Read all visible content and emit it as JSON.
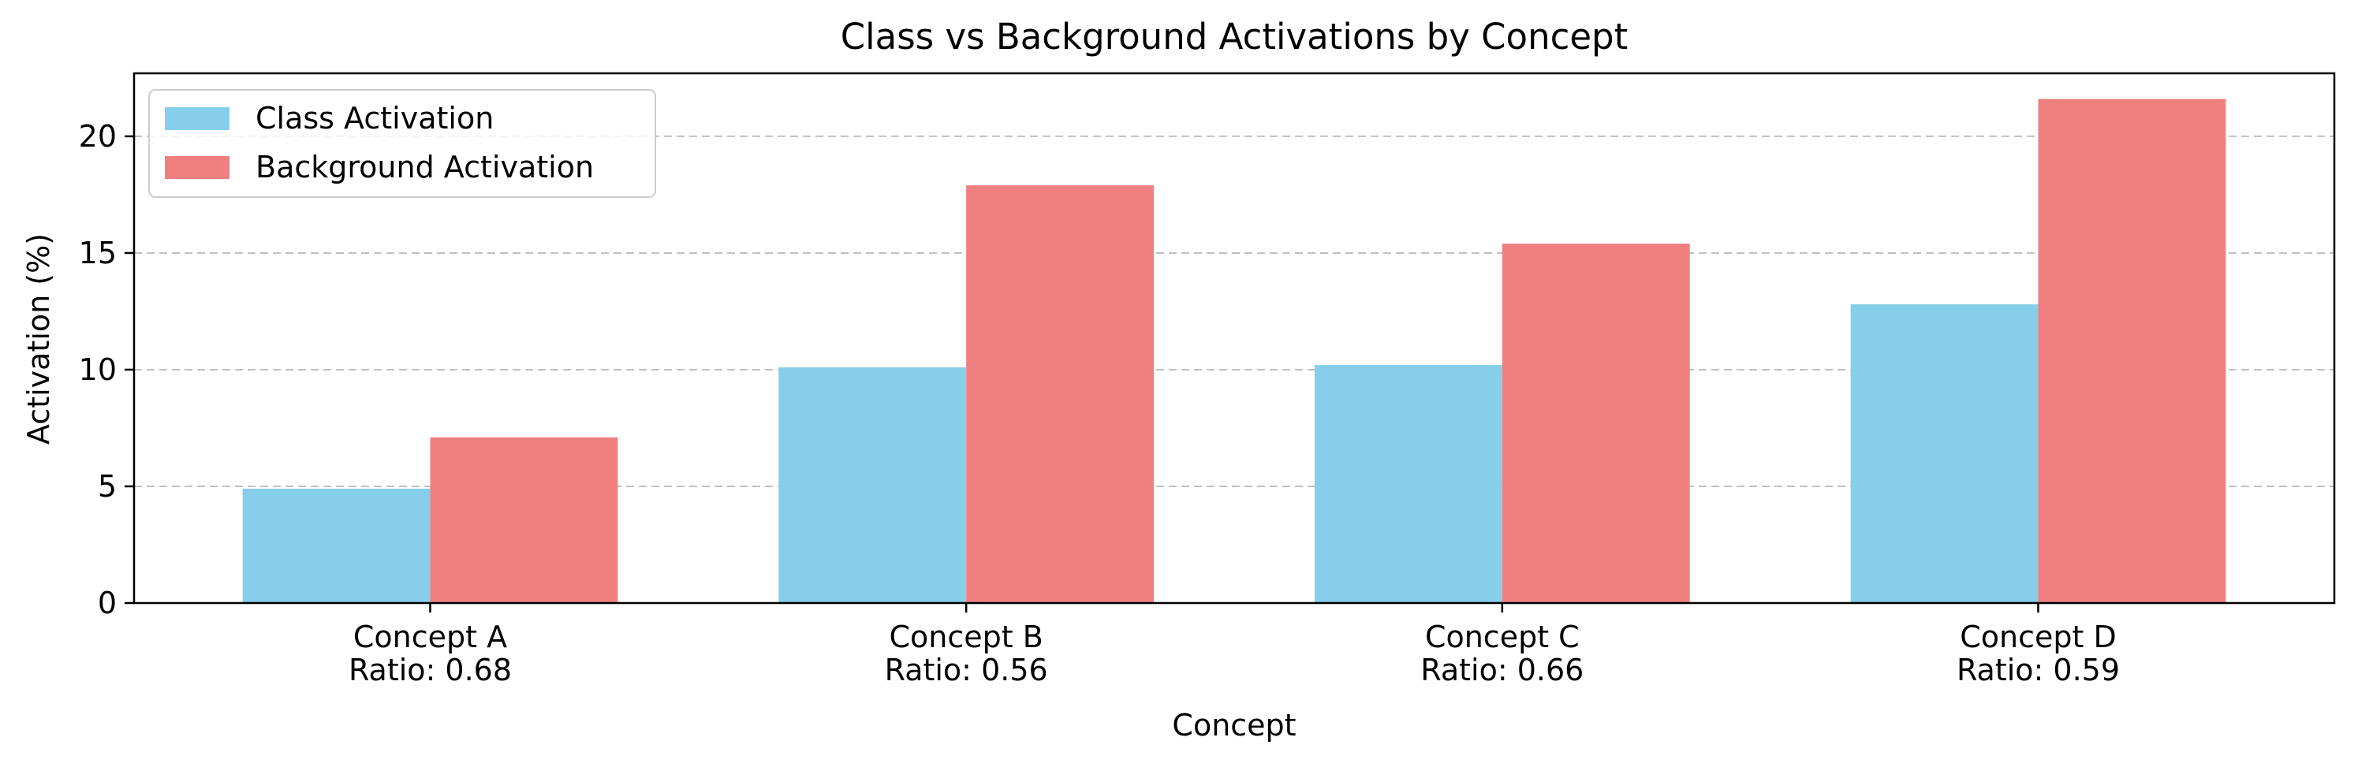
{
  "chart_data": {
    "type": "bar",
    "title": "Class vs Background Activations by Concept",
    "xlabel": "Concept",
    "ylabel": "Activation (%)",
    "categories": [
      "Concept A",
      "Concept B",
      "Concept C",
      "Concept D"
    ],
    "category_sublabels": [
      "Ratio: 0.68",
      "Ratio: 0.56",
      "Ratio: 0.66",
      "Ratio: 0.59"
    ],
    "series": [
      {
        "name": "Class Activation",
        "values": [
          4.9,
          10.1,
          10.2,
          12.8
        ],
        "color": "#87CEEB"
      },
      {
        "name": "Background Activation",
        "values": [
          7.1,
          17.9,
          15.4,
          21.6
        ],
        "color": "#F08080"
      }
    ],
    "ylim": [
      0,
      22.7
    ],
    "yticks": [
      0,
      5,
      10,
      15,
      20
    ],
    "grid": {
      "axis": "y",
      "style": "dashed",
      "color": "#c0c0c0"
    },
    "legend_position": "top-left"
  }
}
